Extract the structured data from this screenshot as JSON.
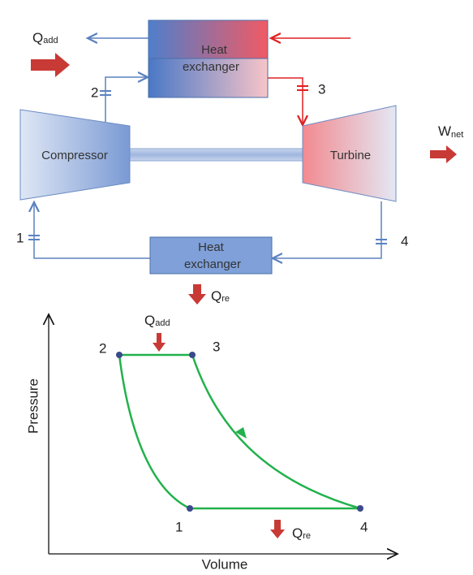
{
  "cycle_diagram": {
    "heat_added": {
      "symbol": "Q",
      "subscript": "add"
    },
    "top_exchanger": [
      "Heat",
      "exchanger"
    ],
    "compressor": "Compressor",
    "turbine": "Turbine",
    "work": {
      "symbol": "W",
      "subscript": "net"
    },
    "bottom_exchanger": [
      "Heat",
      "exchanger"
    ],
    "heat_rejected": {
      "symbol": "Q",
      "subscript": "re"
    },
    "state_labels": [
      "1",
      "2",
      "3",
      "4"
    ]
  },
  "pv_diagram": {
    "y_axis_label": "Pressure",
    "x_axis_label": "Volume",
    "heat_added": {
      "symbol": "Q",
      "subscript": "add"
    },
    "heat_rejected": {
      "symbol": "Q",
      "subscript": "re"
    },
    "point_labels": [
      "1",
      "2",
      "3",
      "4"
    ]
  }
}
